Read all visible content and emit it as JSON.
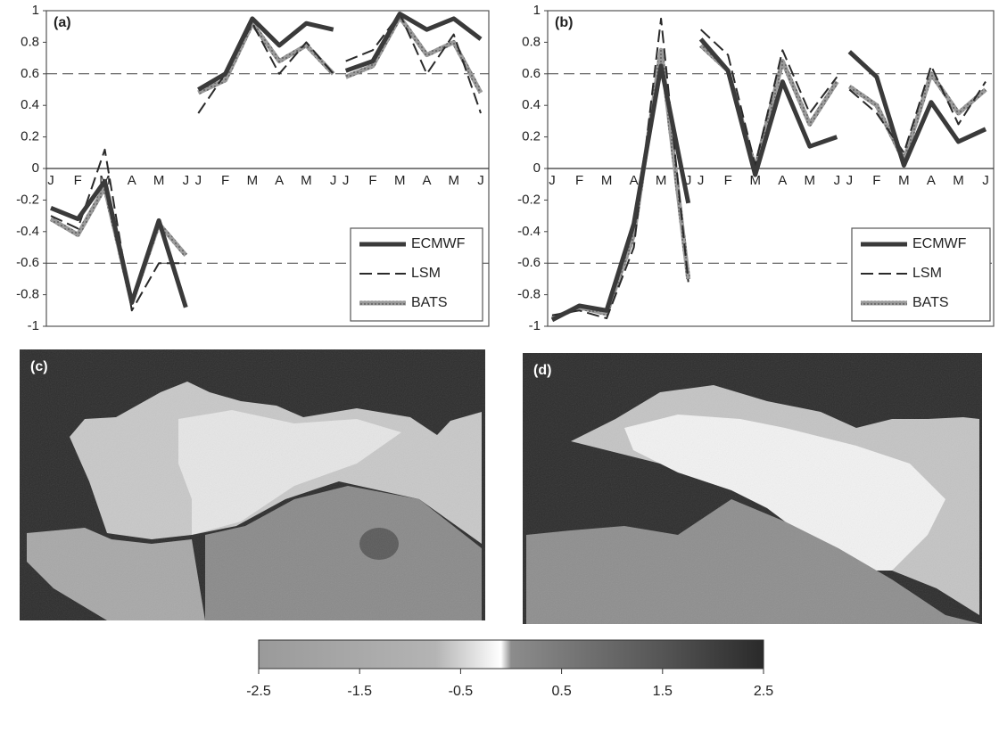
{
  "colors": {
    "ecmwf": "#3a3a3a",
    "lsm": "#2a2a2a",
    "bats": "#8a8a8a",
    "map_mask": "#2c2c2c",
    "colorbar_stops": [
      "#9a9a9a",
      "#b4b4b4",
      "#ffffff",
      "#8c8c8c",
      "#555555",
      "#2a2a2a"
    ]
  },
  "chart_data": [
    {
      "panel_label": "(a)",
      "type": "line",
      "ylim": [
        -1,
        1
      ],
      "yticks": [
        "1",
        "0.8",
        "0.6",
        "0.4",
        "0.2",
        "0",
        "-0.2",
        "-0.4",
        "-0.6",
        "-0.8",
        "-1"
      ],
      "months": [
        "J",
        "F",
        "M",
        "A",
        "M",
        "J"
      ],
      "thresholds": [
        0.6,
        -0.6
      ],
      "legend": [
        "ECMWF",
        "LSM",
        "BATS"
      ],
      "legend_position": "bottom-right",
      "groups": [
        {
          "ECMWF": [
            -0.25,
            -0.32,
            -0.08,
            -0.85,
            -0.33,
            -0.88
          ],
          "LSM": [
            -0.3,
            -0.38,
            0.12,
            -0.9,
            -0.6,
            -0.6
          ],
          "BATS": [
            -0.32,
            -0.42,
            -0.12,
            -0.85,
            -0.35,
            -0.55
          ]
        },
        {
          "ECMWF": [
            0.5,
            0.6,
            0.95,
            0.78,
            0.92,
            0.88
          ],
          "LSM": [
            0.35,
            0.6,
            0.92,
            0.6,
            0.8,
            0.6
          ],
          "BATS": [
            0.48,
            0.56,
            0.92,
            0.68,
            0.78,
            0.6
          ]
        },
        {
          "ECMWF": [
            0.62,
            0.68,
            0.98,
            0.88,
            0.95,
            0.82
          ],
          "LSM": [
            0.68,
            0.75,
            0.98,
            0.6,
            0.85,
            0.35
          ],
          "BATS": [
            0.58,
            0.65,
            0.96,
            0.72,
            0.8,
            0.48
          ]
        }
      ]
    },
    {
      "panel_label": "(b)",
      "type": "line",
      "ylim": [
        -1,
        1
      ],
      "yticks": [
        "1",
        "0.8",
        "0.6",
        "0.4",
        "0.2",
        "0",
        "-0.2",
        "-0.4",
        "-0.6",
        "-0.8",
        "-1"
      ],
      "months": [
        "J",
        "F",
        "M",
        "A",
        "M",
        "J"
      ],
      "thresholds": [
        0.6,
        -0.6
      ],
      "legend": [
        "ECMWF",
        "LSM",
        "BATS"
      ],
      "legend_position": "bottom-right",
      "groups": [
        {
          "ECMWF": [
            -0.96,
            -0.87,
            -0.9,
            -0.35,
            0.65,
            -0.22
          ],
          "LSM": [
            -0.93,
            -0.9,
            -0.95,
            -0.5,
            0.95,
            -0.72
          ],
          "BATS": [
            -0.95,
            -0.88,
            -0.92,
            -0.42,
            0.75,
            -0.7
          ]
        },
        {
          "ECMWF": [
            0.82,
            0.62,
            -0.04,
            0.55,
            0.14,
            0.2
          ],
          "LSM": [
            0.88,
            0.72,
            0.02,
            0.75,
            0.35,
            0.58
          ],
          "BATS": [
            0.78,
            0.62,
            0.0,
            0.68,
            0.28,
            0.55
          ]
        },
        {
          "ECMWF": [
            0.74,
            0.58,
            0.02,
            0.42,
            0.17,
            0.25
          ],
          "LSM": [
            0.5,
            0.35,
            0.1,
            0.65,
            0.28,
            0.55
          ],
          "BATS": [
            0.52,
            0.4,
            0.05,
            0.6,
            0.35,
            0.5
          ]
        }
      ]
    },
    {
      "panel_label": "(c)",
      "type": "heatmap"
    },
    {
      "panel_label": "(d)",
      "type": "heatmap"
    },
    {
      "type": "colorbar",
      "tick_labels": [
        "-2.5",
        "-1.5",
        "-0.5",
        "0.5",
        "1.5",
        "2.5"
      ],
      "range": [
        -2.5,
        2.5
      ]
    }
  ]
}
